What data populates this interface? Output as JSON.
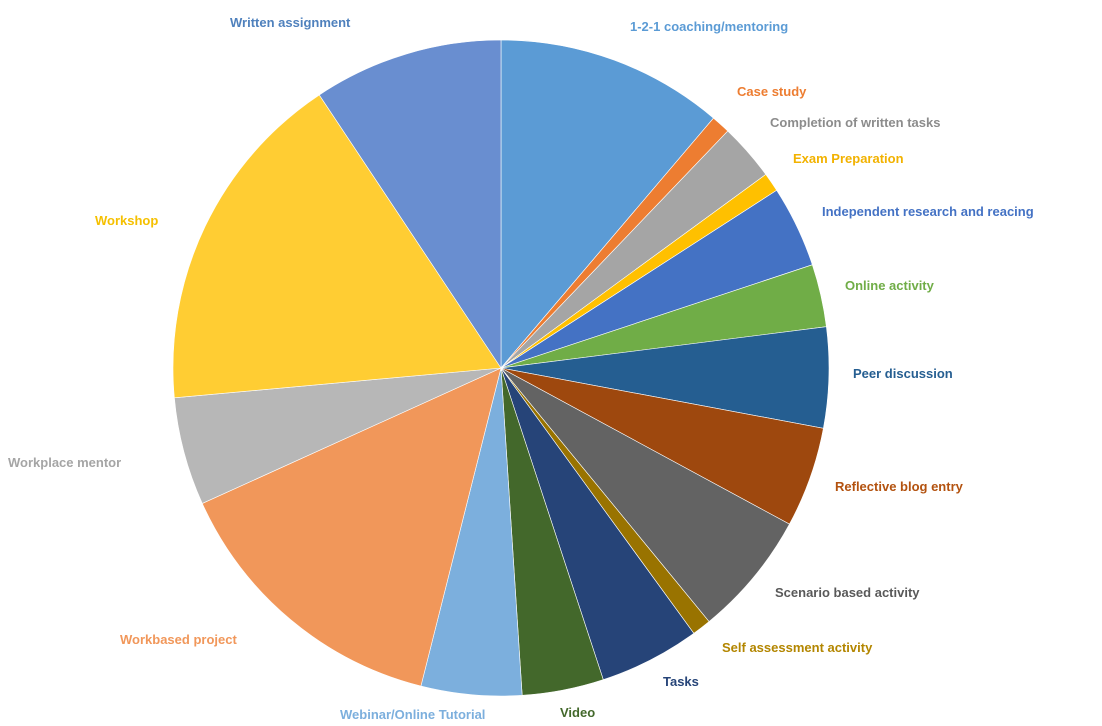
{
  "chart_data": {
    "type": "pie",
    "title": "",
    "start_angle_deg": 0,
    "direction": "clockwise",
    "slices": [
      {
        "label": "1-2-1 coaching/mentoring",
        "value": 12.0,
        "color": "#5b9bd5",
        "label_color": "#5b9bd5"
      },
      {
        "label": "Case study",
        "value": 1.0,
        "color": "#ed7d31",
        "label_color": "#ed7d31"
      },
      {
        "label": "Completion of written tasks",
        "value": 3.0,
        "color": "#a5a5a5",
        "label_color": "#8c8c8c"
      },
      {
        "label": "Exam Preparation",
        "value": 1.0,
        "color": "#ffc000",
        "label_color": "#f2b200"
      },
      {
        "label": "Independent research and reacing",
        "value": 4.3,
        "color": "#4472c4",
        "label_color": "#4472c4"
      },
      {
        "label": "Online activity",
        "value": 3.3,
        "color": "#70ad47",
        "label_color": "#70ad47"
      },
      {
        "label": "Peer discussion",
        "value": 5.3,
        "color": "#255e91",
        "label_color": "#255e91"
      },
      {
        "label": "Reflective blog entry",
        "value": 5.3,
        "color": "#9e480e",
        "label_color": "#b3520f"
      },
      {
        "label": "Scenario based activity",
        "value": 6.6,
        "color": "#636363",
        "label_color": "#595959"
      },
      {
        "label": "Self assessment activity",
        "value": 1.0,
        "color": "#997300",
        "label_color": "#b38600"
      },
      {
        "label": "Tasks",
        "value": 5.3,
        "color": "#264478",
        "label_color": "#264478"
      },
      {
        "label": "Video",
        "value": 4.3,
        "color": "#43682b",
        "label_color": "#43682b"
      },
      {
        "label": "Webinar/Online Tutorial",
        "value": 5.3,
        "color": "#7cafdd",
        "label_color": "#7cafdd"
      },
      {
        "label": "Workbased project",
        "value": 15.3,
        "color": "#f1975a",
        "label_color": "#f1975a"
      },
      {
        "label": "Workplace mentor",
        "value": 5.7,
        "color": "#b7b7b7",
        "label_color": "#a5a5a5"
      },
      {
        "label": "Workshop",
        "value": 18.3,
        "color": "#ffcd33",
        "label_color": "#f5c000"
      },
      {
        "label": "Written assignment",
        "value": 10.0,
        "color": "#698ed0",
        "label_color": "#4f81bd"
      }
    ]
  }
}
